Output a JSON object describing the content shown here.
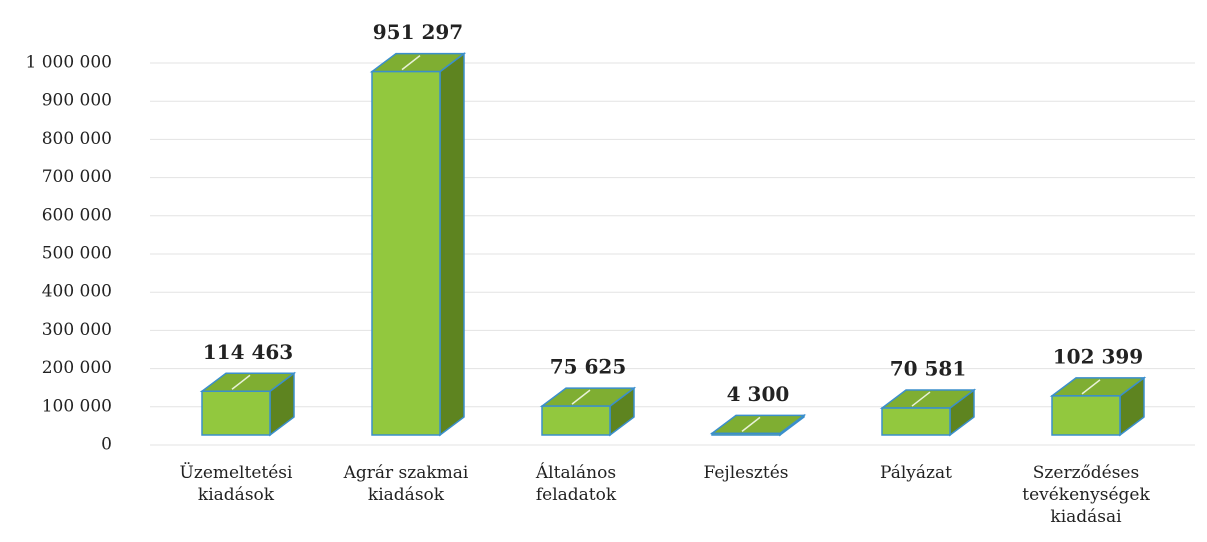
{
  "chart_data": {
    "type": "bar3d",
    "categories": [
      "Üzemeltetési kiadások",
      "Agrár szakmai kiadások",
      "Általános feladatok",
      "Fejlesztés",
      "Pályázat",
      "Szerződéses tevékenységek kiadásai"
    ],
    "values": [
      114463,
      951297,
      75625,
      4300,
      70581,
      102399
    ],
    "value_labels": [
      "114 463",
      "951 297",
      "75 625",
      "4 300",
      "70 581",
      "102 399"
    ],
    "color": "#92c83e",
    "ylim": [
      0,
      1000000
    ],
    "yticks": [
      0,
      {
        "value": 100000,
        "label": "100 000"
      },
      {
        "value": 200000,
        "label": "200 000"
      },
      {
        "value": 300000,
        "label": "300 000"
      },
      {
        "value": 400000,
        "label": "400 000"
      },
      {
        "value": 500000,
        "label": "500 000"
      },
      {
        "value": 600000,
        "label": "600 000"
      },
      {
        "value": 700000,
        "label": "700 000"
      },
      {
        "value": 800000,
        "label": "800 000"
      },
      {
        "value": 900000,
        "label": "900 000"
      },
      {
        "value": 1000000,
        "label": "1 000 000"
      }
    ],
    "grid": true
  }
}
